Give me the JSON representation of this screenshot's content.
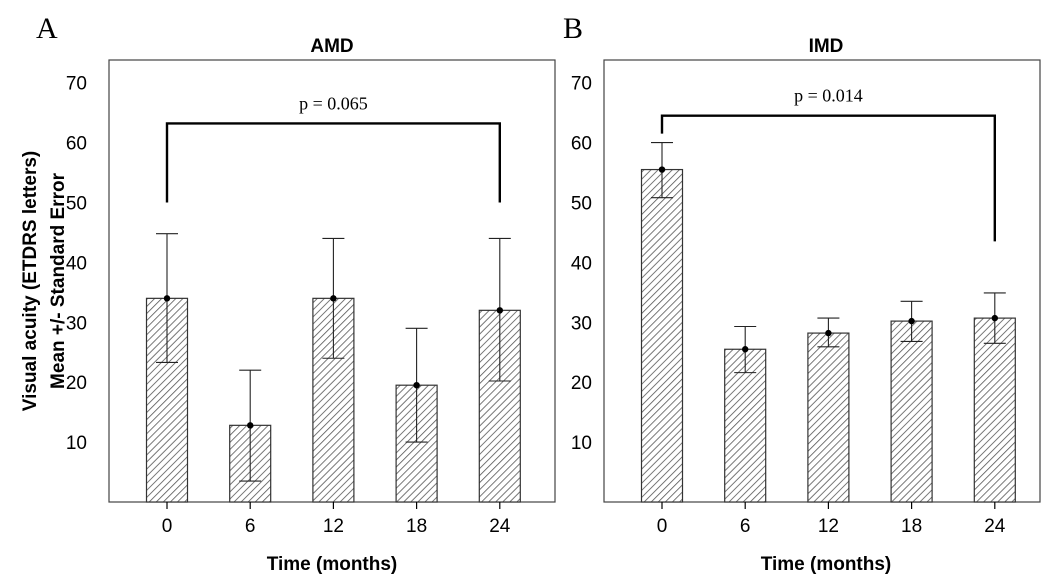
{
  "chart_data": [
    {
      "type": "bar",
      "panel_letter": "A",
      "title": "AMD",
      "xlabel": "Time (months)",
      "ylabel_lines": [
        "Visual acuity (ETDRS letters)",
        "Mean +/- Standard Error"
      ],
      "categories": [
        "0",
        "6",
        "12",
        "18",
        "24"
      ],
      "values": [
        34,
        12.8,
        34,
        19.5,
        32
      ],
      "error_upper": [
        44.8,
        22,
        44,
        29,
        44
      ],
      "error_lower": [
        23.3,
        3.5,
        24,
        10,
        20.2
      ],
      "ylim": [
        0,
        75
      ],
      "yticks": [
        10,
        20,
        30,
        40,
        50,
        60,
        70
      ],
      "annotation": {
        "text": "p = 0.065",
        "from": "0",
        "to": "24",
        "bracket_y": 63.2,
        "left_end": 50,
        "right_end": 50
      }
    },
    {
      "type": "bar",
      "panel_letter": "B",
      "title": "IMD",
      "xlabel": "Time (months)",
      "categories": [
        "0",
        "6",
        "12",
        "18",
        "24"
      ],
      "values": [
        55.5,
        25.5,
        28.2,
        30.2,
        30.7
      ],
      "error_upper": [
        60,
        29.3,
        30.7,
        33.5,
        34.9
      ],
      "error_lower": [
        50.8,
        21.6,
        25.9,
        26.8,
        26.5
      ],
      "ylim": [
        0,
        75
      ],
      "yticks": [
        10,
        20,
        30,
        40,
        50,
        60,
        70
      ],
      "annotation": {
        "text": "p = 0.014",
        "from": "0",
        "to": "24",
        "bracket_y": 64.5,
        "left_end": 61.5,
        "right_end": 43.5
      }
    }
  ]
}
